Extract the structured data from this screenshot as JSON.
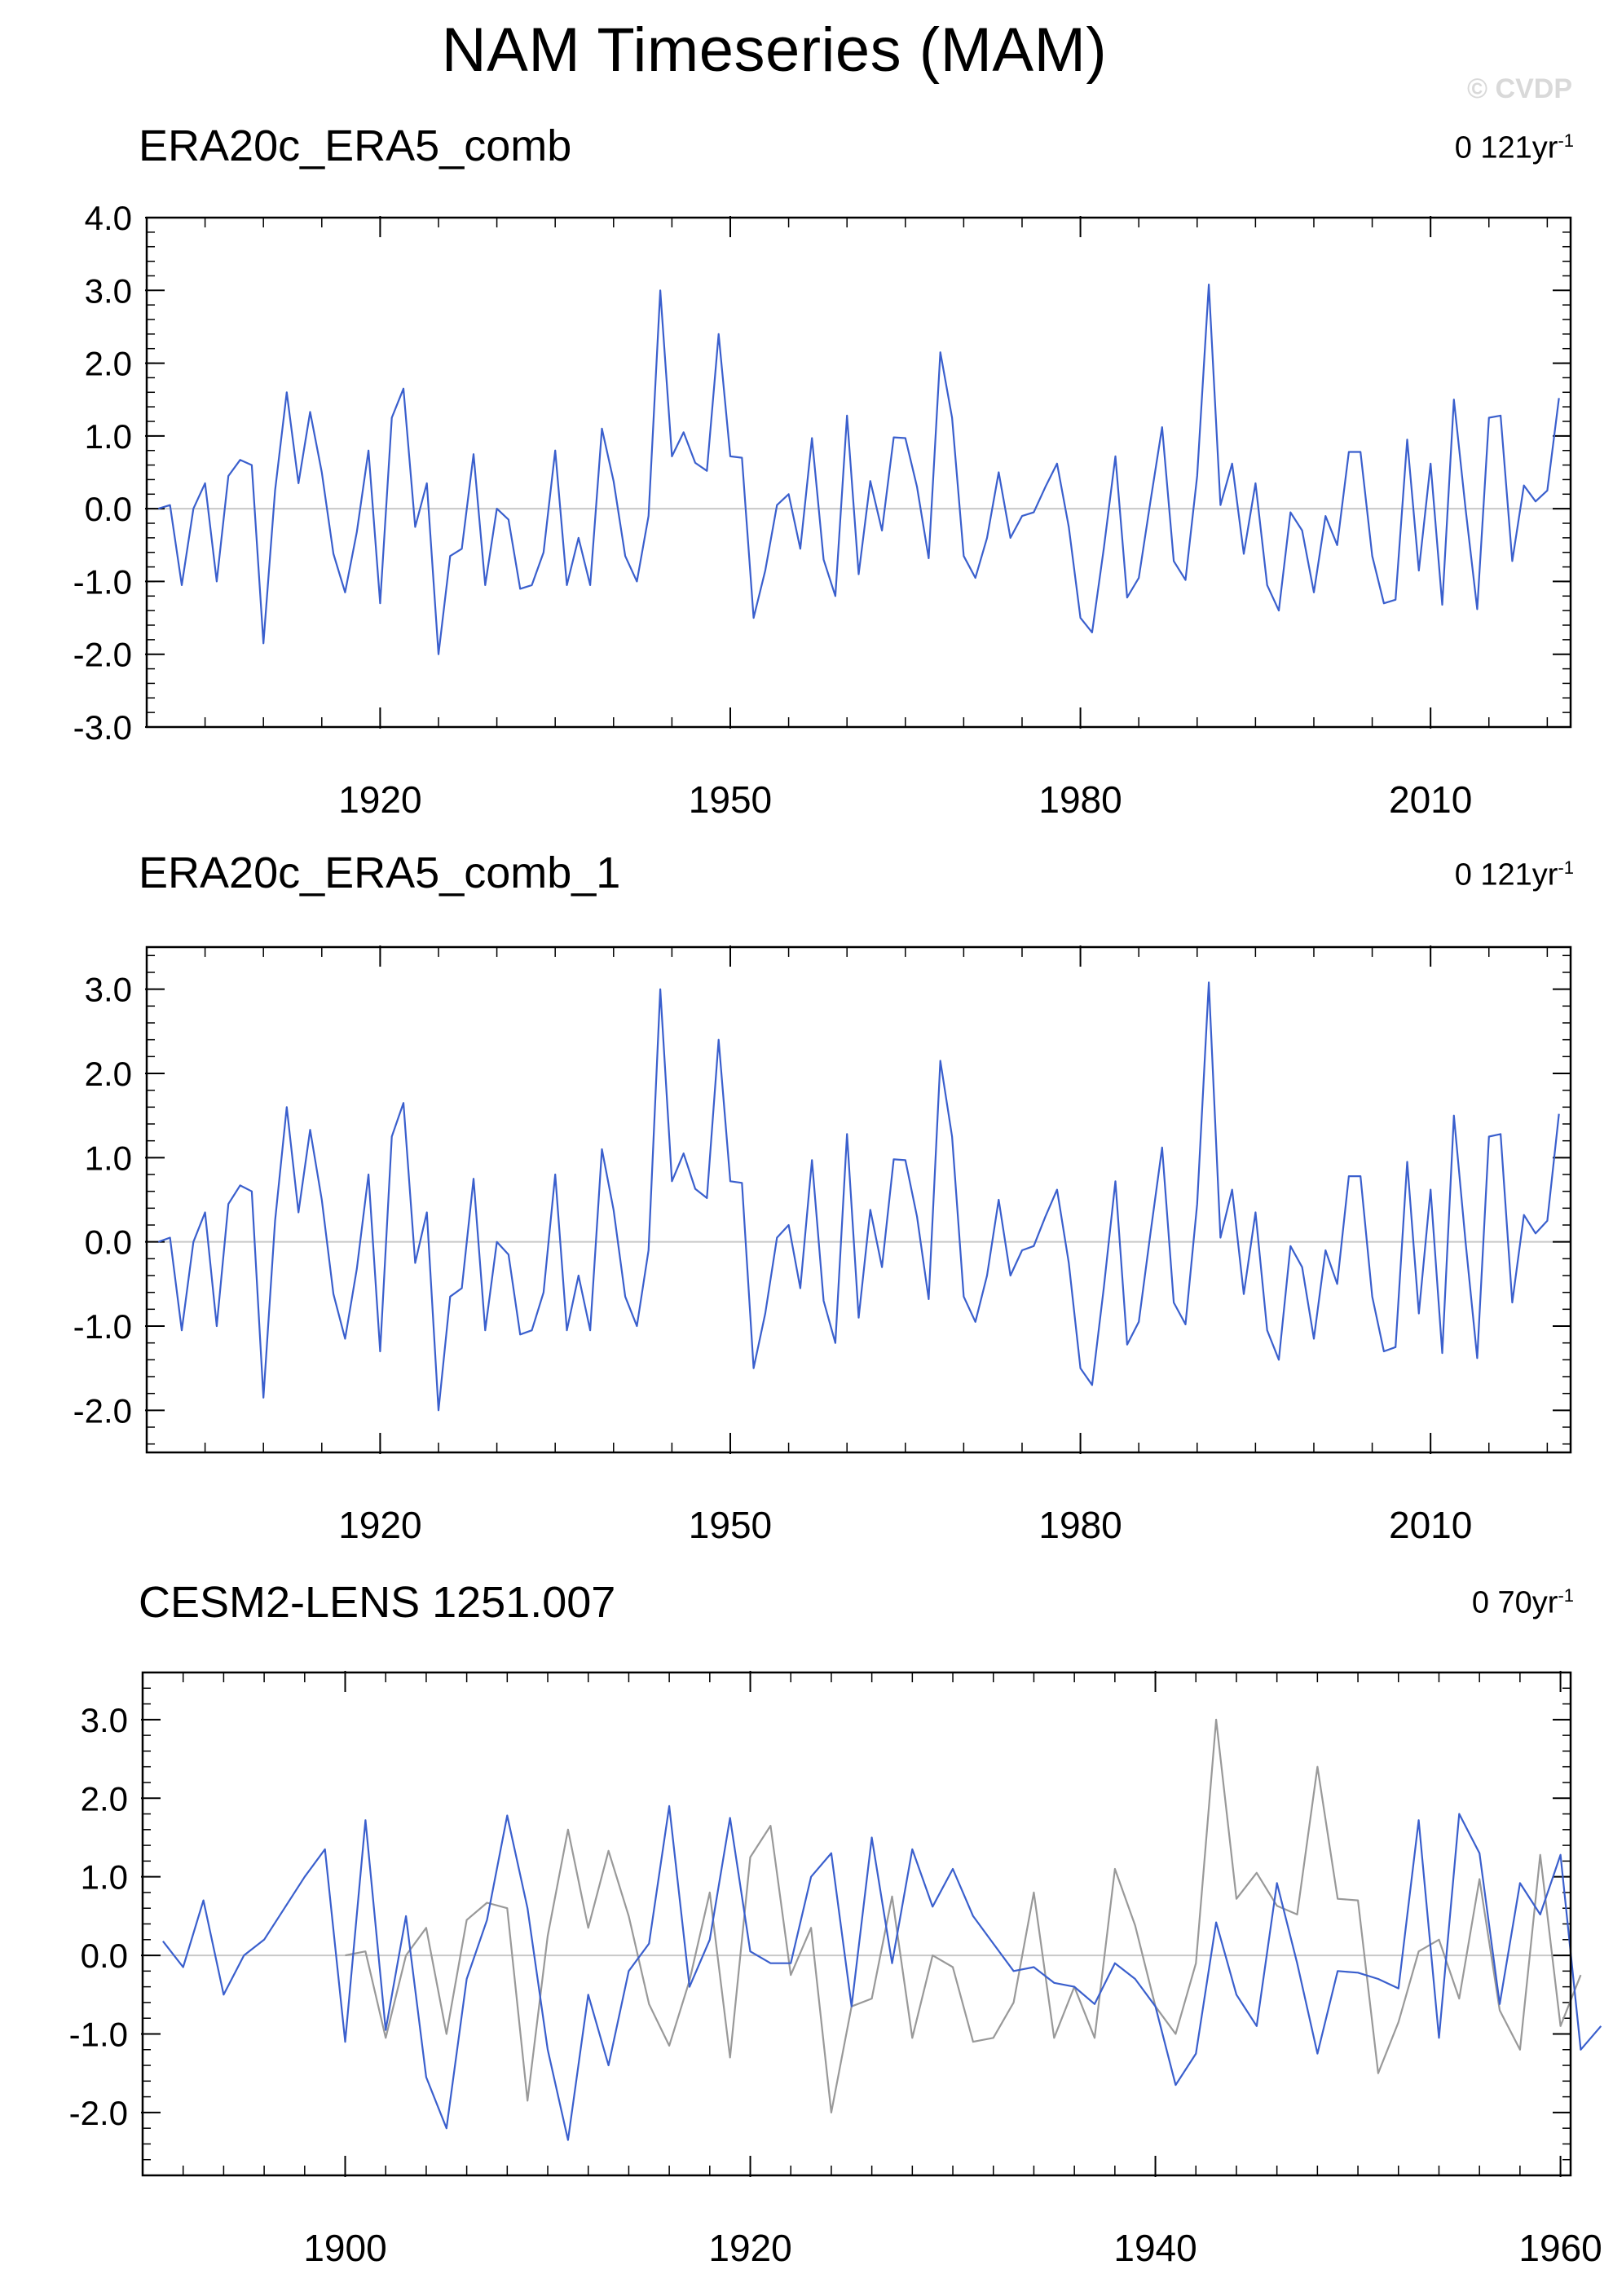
{
  "figure": {
    "title": "NAM Timeseries (MAM)",
    "watermark": "© CVDP",
    "line_color": "#3a5fcd",
    "obs_line_color": "#999999",
    "zero_line_color": "#c8c8c8"
  },
  "panels": [
    {
      "title": "ERA20c_ERA5_comb",
      "trend_value": "0 121yr",
      "trend_exp": "-1"
    },
    {
      "title": "ERA20c_ERA5_comb_1",
      "trend_value": "0 121yr",
      "trend_exp": "-1"
    },
    {
      "title": "CESM2-LENS 1251.007",
      "trend_value": "0 70yr",
      "trend_exp": "-1"
    }
  ],
  "chart_data": [
    {
      "type": "line",
      "title": "ERA20c_ERA5_comb",
      "x_start": 1901,
      "ylim": [
        -3.0,
        4.0
      ],
      "xlim": [
        1900,
        2022
      ],
      "ytick_labels": [
        "4.0",
        "3.0",
        "2.0",
        "1.0",
        "0.0",
        "-1.0",
        "-2.0",
        "-3.0"
      ],
      "ytick_values": [
        4,
        3,
        2,
        1,
        0,
        -1,
        -2,
        -3
      ],
      "xtick_labels": [
        "1920",
        "1950",
        "1980",
        "2010"
      ],
      "xtick_values": [
        1920,
        1950,
        1980,
        2010
      ],
      "series": [
        {
          "values": [
            0.0,
            0.05,
            -1.05,
            0.0,
            0.35,
            -1.0,
            0.45,
            0.67,
            0.6,
            -1.85,
            0.25,
            1.6,
            0.35,
            1.33,
            0.5,
            -0.62,
            -1.15,
            -0.32,
            0.8,
            -1.3,
            1.25,
            1.65,
            -0.25,
            0.35,
            -2.0,
            -0.65,
            -0.55,
            0.75,
            -1.05,
            0.0,
            -0.15,
            -1.1,
            -1.05,
            -0.6,
            0.8,
            -1.05,
            -0.4,
            -1.05,
            1.1,
            0.38,
            -0.65,
            -1.0,
            -0.1,
            3.0,
            0.72,
            1.05,
            0.63,
            0.52,
            2.4,
            0.72,
            0.7,
            -1.5,
            -0.85,
            0.05,
            0.2,
            -0.55,
            0.97,
            -0.7,
            -1.2,
            1.28,
            -0.9,
            0.38,
            -0.3,
            0.98,
            0.97,
            0.3,
            -0.68,
            2.15,
            1.25,
            -0.65,
            -0.95,
            -0.4,
            0.5,
            -0.4,
            -0.1,
            -0.05,
            0.3,
            0.62,
            -0.25,
            -1.5,
            -1.7,
            -0.55,
            0.72,
            -1.22,
            -0.95,
            0.1,
            1.12,
            -0.72,
            -0.98,
            0.45,
            3.08,
            0.05,
            0.62,
            -0.62,
            0.35,
            -1.05,
            -1.4,
            -0.05,
            -0.3,
            -1.15,
            -0.1,
            -0.5,
            0.78,
            0.78,
            -0.65,
            -1.3,
            -1.25,
            0.95,
            -0.85,
            0.62,
            -1.32,
            1.5,
            0.0,
            -1.38,
            1.25,
            1.28,
            -0.72,
            0.32,
            0.1,
            0.25,
            1.52
          ]
        }
      ]
    },
    {
      "type": "line",
      "title": "ERA20c_ERA5_comb_1",
      "x_start": 1901,
      "ylim": [
        -2.5,
        3.5
      ],
      "xlim": [
        1900,
        2022
      ],
      "ytick_labels": [
        "3.0",
        "2.0",
        "1.0",
        "0.0",
        "-1.0",
        "-2.0"
      ],
      "ytick_values": [
        3,
        2,
        1,
        0,
        -1,
        -2
      ],
      "xtick_labels": [
        "1920",
        "1950",
        "1980",
        "2010"
      ],
      "xtick_values": [
        1920,
        1950,
        1980,
        2010
      ],
      "series": [
        {
          "values": [
            0.0,
            0.05,
            -1.05,
            0.0,
            0.35,
            -1.0,
            0.45,
            0.67,
            0.6,
            -1.85,
            0.25,
            1.6,
            0.35,
            1.33,
            0.5,
            -0.62,
            -1.15,
            -0.32,
            0.8,
            -1.3,
            1.25,
            1.65,
            -0.25,
            0.35,
            -2.0,
            -0.65,
            -0.55,
            0.75,
            -1.05,
            0.0,
            -0.15,
            -1.1,
            -1.05,
            -0.6,
            0.8,
            -1.05,
            -0.4,
            -1.05,
            1.1,
            0.38,
            -0.65,
            -1.0,
            -0.1,
            3.0,
            0.72,
            1.05,
            0.63,
            0.52,
            2.4,
            0.72,
            0.7,
            -1.5,
            -0.85,
            0.05,
            0.2,
            -0.55,
            0.97,
            -0.7,
            -1.2,
            1.28,
            -0.9,
            0.38,
            -0.3,
            0.98,
            0.97,
            0.3,
            -0.68,
            2.15,
            1.25,
            -0.65,
            -0.95,
            -0.4,
            0.5,
            -0.4,
            -0.1,
            -0.05,
            0.3,
            0.62,
            -0.25,
            -1.5,
            -1.7,
            -0.55,
            0.72,
            -1.22,
            -0.95,
            0.1,
            1.12,
            -0.72,
            -0.98,
            0.45,
            3.08,
            0.05,
            0.62,
            -0.62,
            0.35,
            -1.05,
            -1.4,
            -0.05,
            -0.3,
            -1.15,
            -0.1,
            -0.5,
            0.78,
            0.78,
            -0.65,
            -1.3,
            -1.25,
            0.95,
            -0.85,
            0.62,
            -1.32,
            1.5,
            0.0,
            -1.38,
            1.25,
            1.28,
            -0.72,
            0.32,
            0.1,
            0.25,
            1.52
          ]
        }
      ]
    },
    {
      "type": "line",
      "title": "CESM2-LENS 1251.007",
      "ylim": [
        -2.8,
        3.6
      ],
      "xlim": [
        1890,
        1960.5
      ],
      "ytick_labels": [
        "3.0",
        "2.0",
        "1.0",
        "0.0",
        "-1.0",
        "-2.0"
      ],
      "ytick_values": [
        3,
        2,
        1,
        0,
        -1,
        -2
      ],
      "xtick_labels": [
        "1900",
        "1920",
        "1940",
        "1960"
      ],
      "xtick_values": [
        1900,
        1920,
        1940,
        1960
      ],
      "series": [
        {
          "role": "model",
          "x_start": 1891,
          "values": [
            0.18,
            -0.15,
            0.7,
            -0.5,
            0.0,
            0.2,
            0.6,
            1.0,
            1.35,
            -1.1,
            1.72,
            -0.95,
            0.5,
            -1.55,
            -2.2,
            -0.3,
            0.45,
            1.78,
            0.6,
            -1.2,
            -2.35,
            -0.5,
            -1.4,
            -0.2,
            0.15,
            1.9,
            -0.4,
            0.2,
            1.75,
            0.05,
            -0.1,
            -0.1,
            1.0,
            1.3,
            -0.65,
            1.5,
            -0.1,
            1.35,
            0.62,
            1.1,
            0.5,
            0.15,
            -0.2,
            -0.15,
            -0.35,
            -0.4,
            -0.62,
            -0.1,
            -0.3,
            -0.65,
            -1.65,
            -1.25,
            0.42,
            -0.5,
            -0.9,
            0.92,
            -0.1,
            -1.25,
            -0.2,
            -0.22,
            -0.3,
            -0.42,
            1.72,
            -1.05,
            1.8,
            1.3,
            -0.62,
            0.92,
            0.52,
            1.28,
            -1.2,
            -0.9
          ]
        },
        {
          "role": "observations",
          "x_start": 1900,
          "values": [
            0.0,
            0.05,
            -1.05,
            0.0,
            0.35,
            -1.0,
            0.45,
            0.67,
            0.6,
            -1.85,
            0.25,
            1.6,
            0.35,
            1.33,
            0.5,
            -0.62,
            -1.15,
            -0.32,
            0.8,
            -1.3,
            1.25,
            1.65,
            -0.25,
            0.35,
            -2.0,
            -0.65,
            -0.55,
            0.75,
            -1.05,
            0.0,
            -0.15,
            -1.1,
            -1.05,
            -0.6,
            0.8,
            -1.05,
            -0.4,
            -1.05,
            1.1,
            0.38,
            -0.65,
            -1.0,
            -0.1,
            3.0,
            0.72,
            1.05,
            0.63,
            0.52,
            2.4,
            0.72,
            0.7,
            -1.5,
            -0.85,
            0.05,
            0.2,
            -0.55,
            0.97,
            -0.7,
            -1.2,
            1.28,
            -0.9,
            -0.25
          ]
        }
      ]
    }
  ]
}
